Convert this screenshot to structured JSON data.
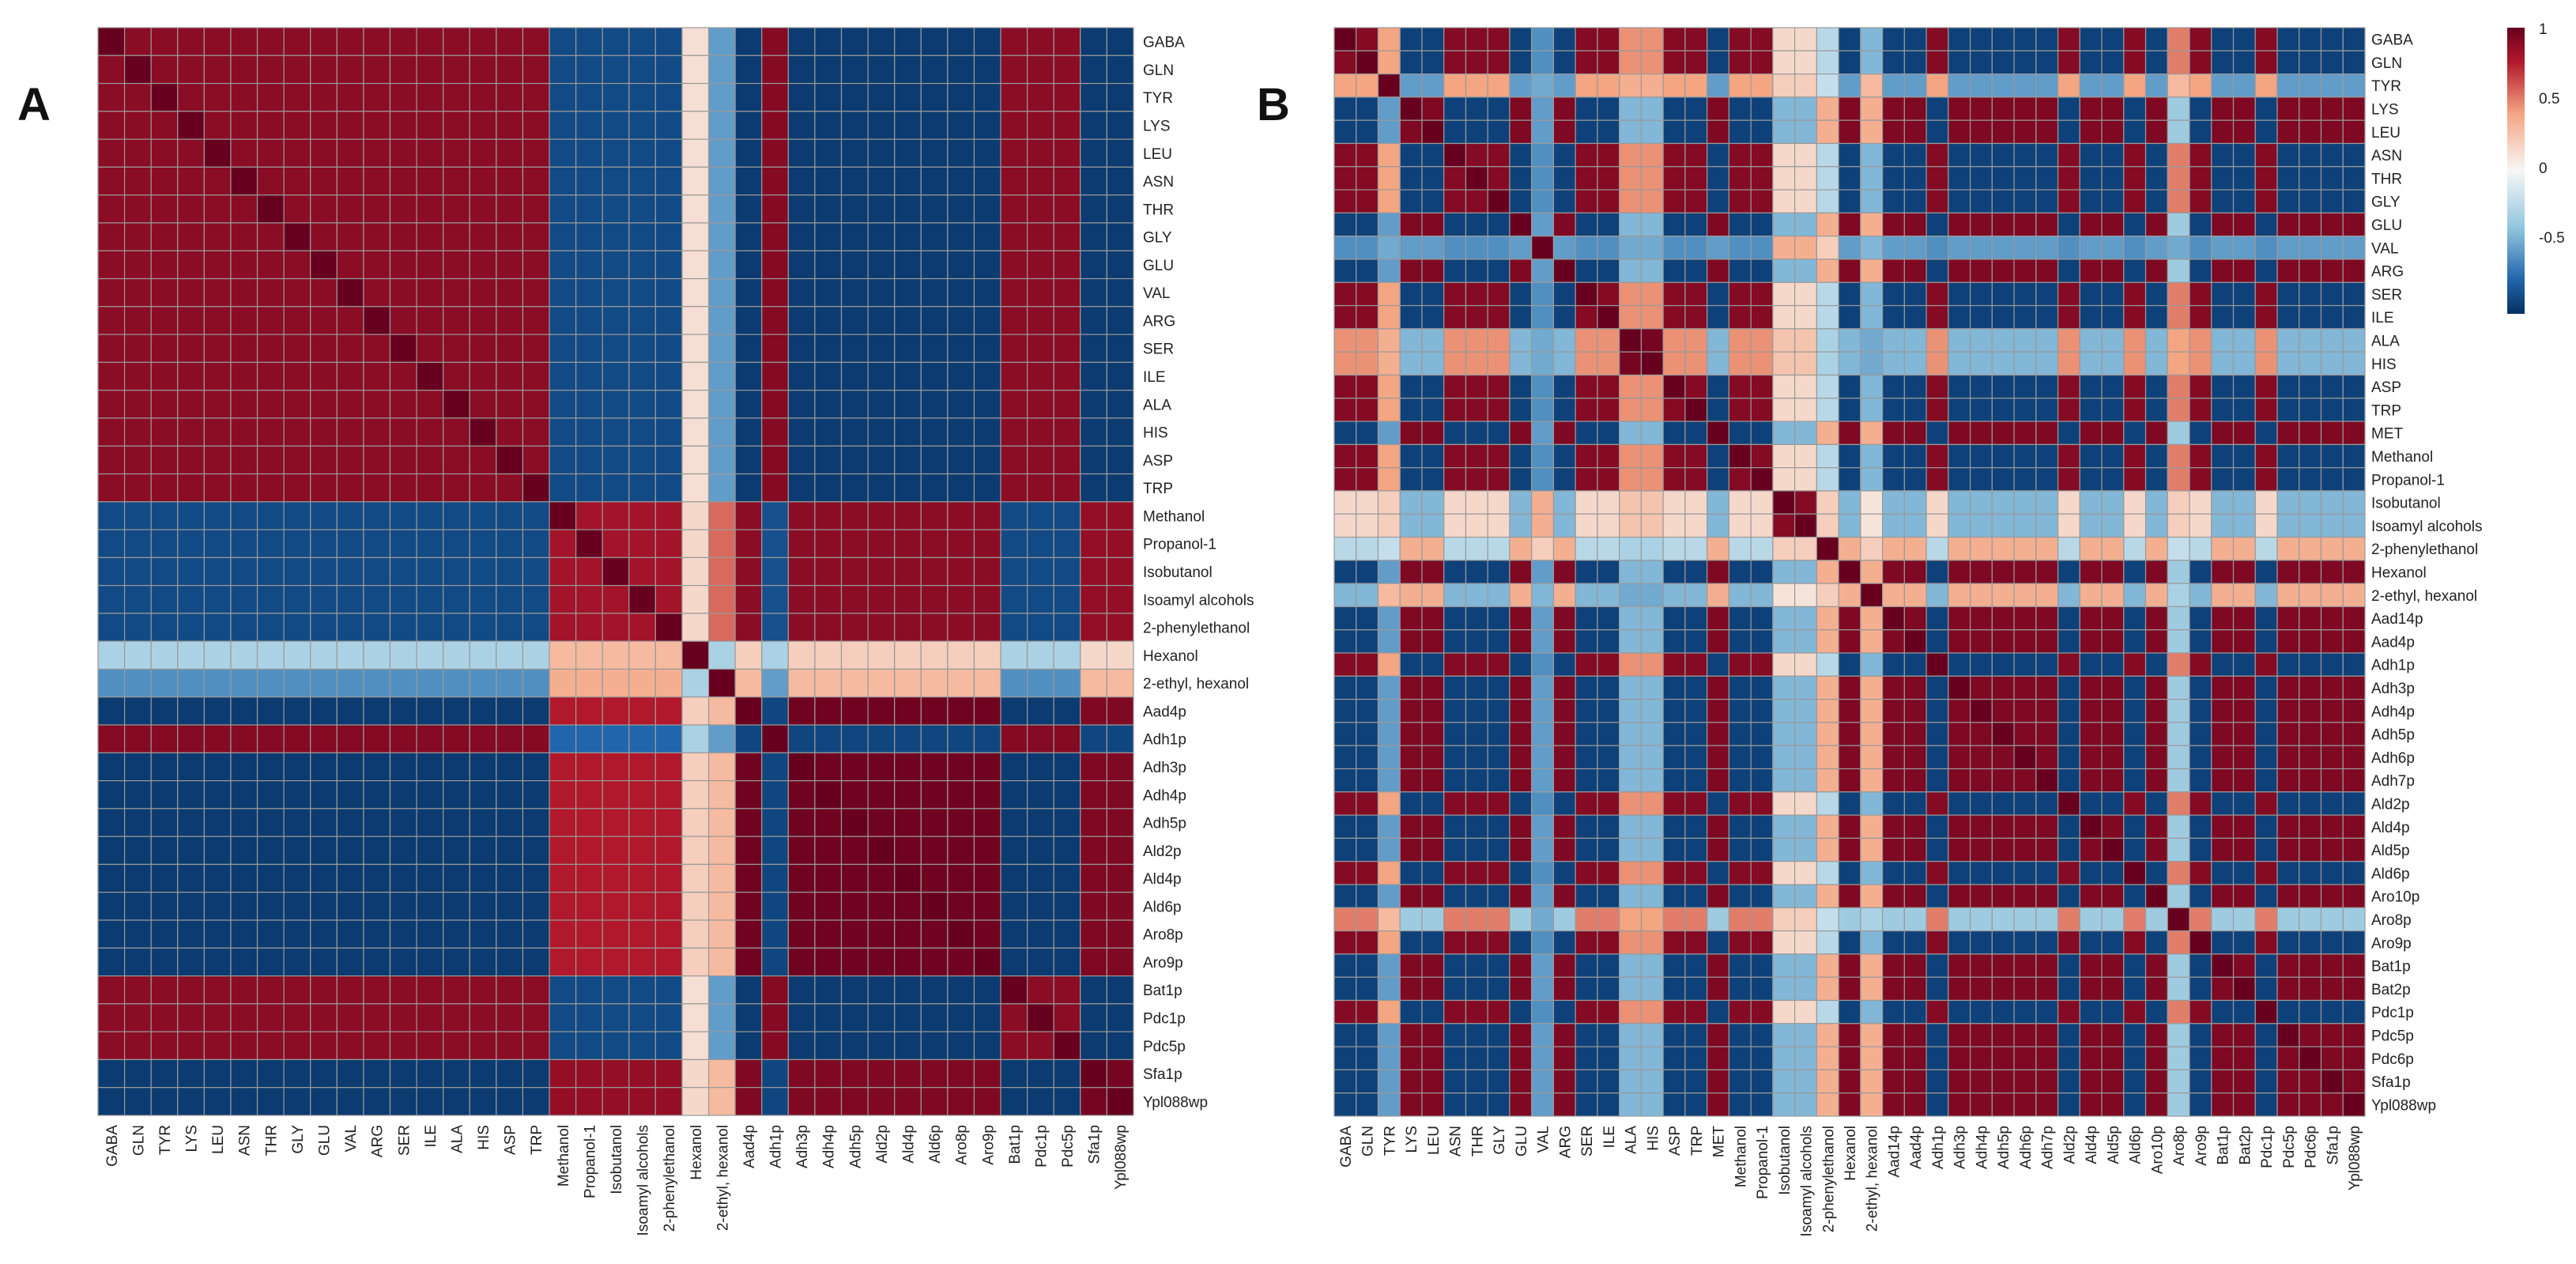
{
  "figure": {
    "panels": [
      "A",
      "B"
    ],
    "colorbar": {
      "ticks": [
        "1",
        "0.5",
        "0",
        "-0.5"
      ],
      "tick_values": [
        1,
        0.5,
        0,
        -0.5
      ],
      "range": [
        -1,
        1
      ]
    },
    "colors": {
      "high": "#67001f",
      "positive": "#b2182b",
      "light_positive": "#f4a582",
      "neutral": "#f7f7f7",
      "light_negative": "#92c5de",
      "negative": "#2166ac",
      "low": "#053061",
      "grid": "#9a9a9a"
    }
  },
  "chart_data": [
    {
      "type": "heatmap",
      "panel": "A",
      "title": "",
      "labels": [
        "GABA",
        "GLN",
        "TYR",
        "LYS",
        "LEU",
        "ASN",
        "THR",
        "GLY",
        "GLU",
        "VAL",
        "ARG",
        "SER",
        "ILE",
        "ALA",
        "HIS",
        "ASP",
        "TRP",
        "Methanol",
        "Propanol-1",
        "Isobutanol",
        "Isoamyl alcohols",
        "2-phenylethanol",
        "Hexanol",
        "2-ethyl, hexanol",
        "Aad4p",
        "Adh1p",
        "Adh3p",
        "Adh4p",
        "Adh5p",
        "Ald2p",
        "Ald4p",
        "Ald6p",
        "Aro8p",
        "Aro9p",
        "Bat1p",
        "Pdc1p",
        "Pdc5p",
        "Sfa1p",
        "Ypl088wp"
      ],
      "group_pattern": [
        "R",
        "R",
        "R",
        "R",
        "R",
        "R",
        "R",
        "R",
        "R",
        "R",
        "R",
        "R",
        "R",
        "R",
        "R",
        "R",
        "R",
        "B",
        "B",
        "B",
        "B",
        "B",
        "H",
        "E",
        "X",
        "Y",
        "X",
        "X",
        "X",
        "X",
        "X",
        "X",
        "X",
        "X",
        "R",
        "R",
        "R",
        "Z",
        "Z"
      ],
      "group_matrix": {
        "R": {
          "R": 0.88,
          "B": -0.88,
          "H": 0.12,
          "E": -0.55,
          "X": -0.95,
          "Y": 0.9,
          "Z": -0.95
        },
        "B": {
          "R": -0.88,
          "B": 0.8,
          "H": 0.15,
          "E": 0.55,
          "X": 0.88,
          "Y": -0.85,
          "Z": 0.85
        },
        "H": {
          "R": -0.3,
          "B": 0.3,
          "H": 1.0,
          "E": -0.3,
          "X": 0.2,
          "Y": -0.3,
          "Z": 0.15
        },
        "E": {
          "R": -0.6,
          "B": 0.35,
          "H": -0.3,
          "E": 1.0,
          "X": 0.3,
          "Y": -0.55,
          "Z": 0.3
        },
        "X": {
          "R": -0.95,
          "B": 0.75,
          "H": 0.2,
          "E": 0.3,
          "X": 0.97,
          "Y": -0.9,
          "Z": 0.92
        },
        "Y": {
          "R": 0.9,
          "B": -0.75,
          "H": -0.3,
          "E": -0.55,
          "X": -0.9,
          "Y": 1.0,
          "Z": -0.9
        },
        "Z": {
          "R": -0.95,
          "B": 0.85,
          "H": 0.15,
          "E": 0.3,
          "X": 0.92,
          "Y": -0.9,
          "Z": 0.95
        }
      }
    },
    {
      "type": "heatmap",
      "panel": "B",
      "title": "",
      "labels": [
        "GABA",
        "GLN",
        "TYR",
        "LYS",
        "LEU",
        "ASN",
        "THR",
        "GLY",
        "GLU",
        "VAL",
        "ARG",
        "SER",
        "ILE",
        "ALA",
        "HIS",
        "ASP",
        "TRP",
        "MET",
        "Methanol",
        "Propanol-1",
        "Isobutanol",
        "Isoamyl alcohols",
        "2-phenylethanol",
        "Hexanol",
        "2-ethyl, hexanol",
        "Aad14p",
        "Aad4p",
        "Adh1p",
        "Adh3p",
        "Adh4p",
        "Adh5p",
        "Adh6p",
        "Adh7p",
        "Ald2p",
        "Ald4p",
        "Ald5p",
        "Ald6p",
        "Aro10p",
        "Aro8p",
        "Aro9p",
        "Bat1p",
        "Bat2p",
        "Pdc1p",
        "Pdc5p",
        "Pdc6p",
        "Sfa1p",
        "Ypl088wp"
      ],
      "group_pattern": [
        "G",
        "G",
        "T",
        "K",
        "K",
        "G",
        "G",
        "G",
        "K",
        "V",
        "K",
        "G",
        "G",
        "L",
        "L",
        "G",
        "G",
        "K",
        "G",
        "G",
        "I",
        "I",
        "P",
        "K",
        "Q",
        "K",
        "K",
        "G",
        "K",
        "K",
        "K",
        "K",
        "K",
        "G",
        "K",
        "K",
        "G",
        "K",
        "M",
        "G",
        "K",
        "K",
        "G",
        "K",
        "K",
        "K",
        "K"
      ],
      "group_matrix": {
        "G": {
          "G": 0.9,
          "K": -0.92,
          "T": 0.4,
          "V": -0.6,
          "L": 0.45,
          "I": 0.15,
          "P": -0.25,
          "Q": -0.45,
          "M": 0.5
        },
        "K": {
          "G": -0.92,
          "K": 0.92,
          "T": -0.55,
          "V": -0.55,
          "L": -0.45,
          "I": -0.45,
          "P": 0.35,
          "Q": 0.35,
          "M": -0.35
        },
        "T": {
          "G": 0.4,
          "K": -0.55,
          "T": 1.0,
          "V": -0.5,
          "L": 0.35,
          "I": 0.2,
          "P": -0.2,
          "Q": 0.3,
          "M": 0.3
        },
        "V": {
          "G": -0.6,
          "K": -0.55,
          "T": -0.5,
          "V": 1.0,
          "L": -0.5,
          "I": 0.35,
          "P": 0.2,
          "Q": -0.45,
          "M": -0.5
        },
        "L": {
          "G": 0.45,
          "K": -0.45,
          "T": 0.35,
          "V": -0.5,
          "L": 0.95,
          "I": 0.25,
          "P": -0.3,
          "Q": -0.5,
          "M": 0.4
        },
        "I": {
          "G": 0.15,
          "K": -0.45,
          "T": 0.2,
          "V": 0.35,
          "L": 0.25,
          "I": 0.9,
          "P": 0.2,
          "Q": 0.1,
          "M": 0.2
        },
        "P": {
          "G": -0.25,
          "K": 0.35,
          "T": -0.2,
          "V": 0.2,
          "L": -0.3,
          "I": 0.2,
          "P": 1.0,
          "Q": 0.2,
          "M": -0.2
        },
        "Q": {
          "G": -0.45,
          "K": 0.35,
          "T": 0.3,
          "V": -0.45,
          "L": -0.5,
          "I": 0.1,
          "P": 0.2,
          "Q": 1.0,
          "M": -0.3
        },
        "M": {
          "G": 0.5,
          "K": -0.35,
          "T": 0.3,
          "V": -0.5,
          "L": 0.4,
          "I": 0.2,
          "P": -0.2,
          "Q": -0.3,
          "M": 1.0
        }
      }
    }
  ]
}
